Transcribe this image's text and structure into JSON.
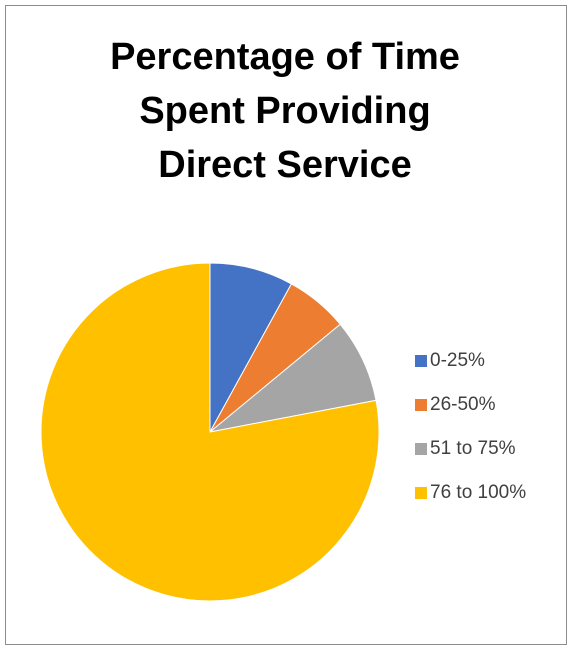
{
  "chart_data": {
    "type": "pie",
    "title_lines": [
      "Percentage of Time",
      "Spent Providing",
      "Direct Service"
    ],
    "categories": [
      "0-25%",
      "26-50%",
      "51 to 75%",
      "76 to 100%"
    ],
    "values": [
      8,
      6,
      8,
      78
    ],
    "colors": [
      "#4472C4",
      "#ED7D31",
      "#A5A5A5",
      "#FFC000"
    ],
    "legend_position": "right"
  }
}
